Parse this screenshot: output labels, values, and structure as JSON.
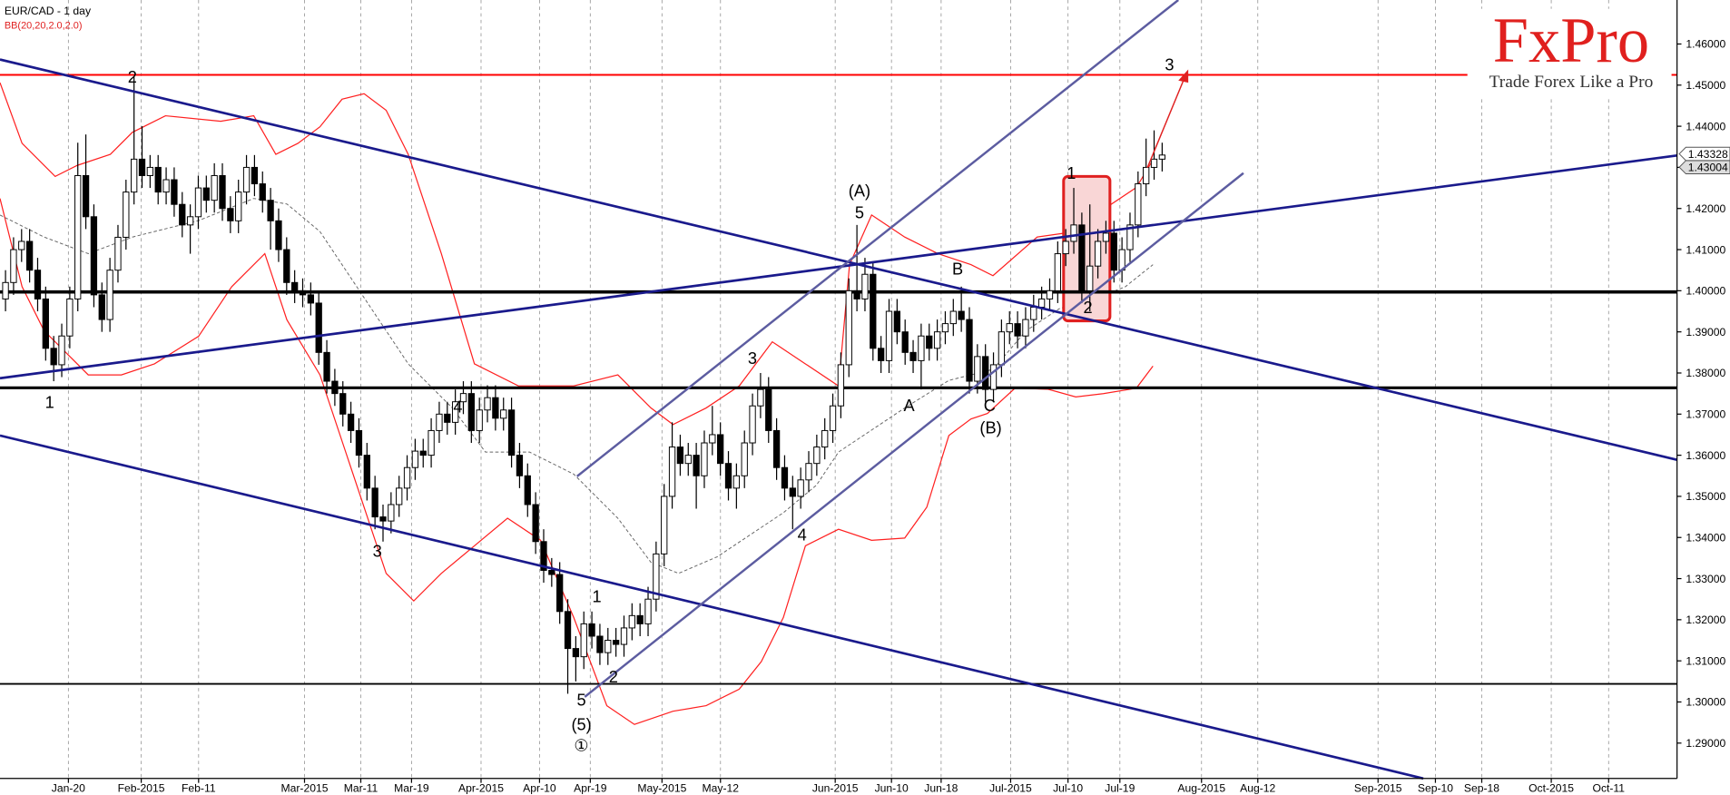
{
  "chart_data": {
    "type": "candlestick",
    "title": "EUR/CAD - 1 day",
    "indicator": "BB(20,20,2.0,2.0)",
    "ylim": [
      1.2814,
      1.4707
    ],
    "yticks": [
      {
        "value": 1.29,
        "label": "1.29000"
      },
      {
        "value": 1.3,
        "label": "1.30000"
      },
      {
        "value": 1.31,
        "label": "1.31000"
      },
      {
        "value": 1.32,
        "label": "1.32000"
      },
      {
        "value": 1.33,
        "label": "1.33000"
      },
      {
        "value": 1.34,
        "label": "1.34000"
      },
      {
        "value": 1.35,
        "label": "1.35000"
      },
      {
        "value": 1.36,
        "label": "1.36000"
      },
      {
        "value": 1.37,
        "label": "1.37000"
      },
      {
        "value": 1.38,
        "label": "1.38000"
      },
      {
        "value": 1.39,
        "label": "1.39000"
      },
      {
        "value": 1.4,
        "label": "1.40000"
      },
      {
        "value": 1.41,
        "label": "1.41000"
      },
      {
        "value": 1.42,
        "label": "1.42000"
      },
      {
        "value": 1.43,
        "label": "1.43000"
      },
      {
        "value": 1.44,
        "label": "1.44000"
      },
      {
        "value": 1.45,
        "label": "1.45000"
      },
      {
        "value": 1.46,
        "label": "1.46000"
      }
    ],
    "x_labels": [
      "Jan-20",
      "Feb-2015",
      "Feb-11",
      "Mar-2015",
      "Mar-11",
      "Mar-19",
      "Apr-2015",
      "Apr-10",
      "Apr-19",
      "May-2015",
      "May-12",
      "Jun-2015",
      "Jun-10",
      "Jun-18",
      "Jul-2015",
      "Jul-10",
      "Jul-19",
      "Aug-2015",
      "Aug-12",
      "Sep-2015",
      "Sep-10",
      "Sep-18",
      "Oct-2015",
      "Oct-11"
    ],
    "up_color": "#ffffff",
    "down_color": "#000000",
    "candles": [
      [
        1.398,
        1.405,
        1.395,
        1.402
      ],
      [
        1.402,
        1.413,
        1.399,
        1.41
      ],
      [
        1.41,
        1.415,
        1.407,
        1.412
      ],
      [
        1.412,
        1.415,
        1.402,
        1.405
      ],
      [
        1.405,
        1.408,
        1.395,
        1.398
      ],
      [
        1.398,
        1.401,
        1.383,
        1.386
      ],
      [
        1.386,
        1.389,
        1.378,
        1.382
      ],
      [
        1.382,
        1.392,
        1.379,
        1.389
      ],
      [
        1.389,
        1.401,
        1.386,
        1.398
      ],
      [
        1.398,
        1.436,
        1.395,
        1.428
      ],
      [
        1.428,
        1.438,
        1.415,
        1.418
      ],
      [
        1.418,
        1.421,
        1.396,
        1.399
      ],
      [
        1.399,
        1.402,
        1.39,
        1.393
      ],
      [
        1.393,
        1.408,
        1.39,
        1.405
      ],
      [
        1.405,
        1.416,
        1.402,
        1.413
      ],
      [
        1.413,
        1.427,
        1.41,
        1.424
      ],
      [
        1.424,
        1.452,
        1.421,
        1.432
      ],
      [
        1.432,
        1.44,
        1.425,
        1.428
      ],
      [
        1.428,
        1.433,
        1.425,
        1.43
      ],
      [
        1.43,
        1.433,
        1.421,
        1.424
      ],
      [
        1.424,
        1.43,
        1.421,
        1.427
      ],
      [
        1.427,
        1.43,
        1.418,
        1.421
      ],
      [
        1.421,
        1.424,
        1.413,
        1.416
      ],
      [
        1.416,
        1.421,
        1.409,
        1.418
      ],
      [
        1.418,
        1.428,
        1.415,
        1.425
      ],
      [
        1.425,
        1.428,
        1.419,
        1.422
      ],
      [
        1.422,
        1.431,
        1.419,
        1.428
      ],
      [
        1.428,
        1.431,
        1.417,
        1.42
      ],
      [
        1.42,
        1.423,
        1.414,
        1.417
      ],
      [
        1.417,
        1.427,
        1.414,
        1.424
      ],
      [
        1.424,
        1.433,
        1.421,
        1.43
      ],
      [
        1.43,
        1.433,
        1.423,
        1.426
      ],
      [
        1.426,
        1.429,
        1.419,
        1.422
      ],
      [
        1.422,
        1.425,
        1.41,
        1.417
      ],
      [
        1.417,
        1.42,
        1.407,
        1.41
      ],
      [
        1.41,
        1.413,
        1.399,
        1.402
      ],
      [
        1.402,
        1.405,
        1.397,
        1.4
      ],
      [
        1.4,
        1.403,
        1.396,
        1.399
      ],
      [
        1.399,
        1.402,
        1.394,
        1.397
      ],
      [
        1.397,
        1.4,
        1.382,
        1.385
      ],
      [
        1.385,
        1.388,
        1.375,
        1.378
      ],
      [
        1.378,
        1.381,
        1.372,
        1.375
      ],
      [
        1.375,
        1.378,
        1.367,
        1.37
      ],
      [
        1.37,
        1.373,
        1.363,
        1.366
      ],
      [
        1.366,
        1.369,
        1.357,
        1.36
      ],
      [
        1.36,
        1.363,
        1.349,
        1.352
      ],
      [
        1.352,
        1.355,
        1.342,
        1.345
      ],
      [
        1.345,
        1.348,
        1.339,
        1.344
      ],
      [
        1.344,
        1.351,
        1.341,
        1.348
      ],
      [
        1.348,
        1.355,
        1.345,
        1.352
      ],
      [
        1.352,
        1.36,
        1.349,
        1.357
      ],
      [
        1.357,
        1.364,
        1.354,
        1.361
      ],
      [
        1.361,
        1.364,
        1.357,
        1.36
      ],
      [
        1.36,
        1.369,
        1.357,
        1.366
      ],
      [
        1.366,
        1.373,
        1.363,
        1.37
      ],
      [
        1.37,
        1.373,
        1.365,
        1.368
      ],
      [
        1.368,
        1.376,
        1.365,
        1.373
      ],
      [
        1.373,
        1.378,
        1.37,
        1.375
      ],
      [
        1.375,
        1.378,
        1.363,
        1.366
      ],
      [
        1.366,
        1.374,
        1.363,
        1.371
      ],
      [
        1.371,
        1.377,
        1.368,
        1.374
      ],
      [
        1.374,
        1.377,
        1.366,
        1.369
      ],
      [
        1.369,
        1.374,
        1.366,
        1.371
      ],
      [
        1.371,
        1.374,
        1.357,
        1.36
      ],
      [
        1.36,
        1.363,
        1.352,
        1.355
      ],
      [
        1.355,
        1.358,
        1.345,
        1.348
      ],
      [
        1.348,
        1.351,
        1.336,
        1.339
      ],
      [
        1.339,
        1.342,
        1.329,
        1.332
      ],
      [
        1.332,
        1.335,
        1.328,
        1.331
      ],
      [
        1.331,
        1.334,
        1.319,
        1.322
      ],
      [
        1.322,
        1.325,
        1.302,
        1.313
      ],
      [
        1.313,
        1.316,
        1.305,
        1.311
      ],
      [
        1.311,
        1.322,
        1.308,
        1.319
      ],
      [
        1.319,
        1.322,
        1.313,
        1.316
      ],
      [
        1.316,
        1.319,
        1.309,
        1.312
      ],
      [
        1.312,
        1.318,
        1.309,
        1.315
      ],
      [
        1.315,
        1.318,
        1.311,
        1.314
      ],
      [
        1.314,
        1.321,
        1.311,
        1.318
      ],
      [
        1.318,
        1.324,
        1.315,
        1.321
      ],
      [
        1.321,
        1.324,
        1.316,
        1.319
      ],
      [
        1.319,
        1.328,
        1.316,
        1.325
      ],
      [
        1.325,
        1.339,
        1.322,
        1.336
      ],
      [
        1.336,
        1.353,
        1.333,
        1.35
      ],
      [
        1.35,
        1.368,
        1.347,
        1.362
      ],
      [
        1.362,
        1.365,
        1.355,
        1.358
      ],
      [
        1.358,
        1.363,
        1.355,
        1.36
      ],
      [
        1.36,
        1.363,
        1.347,
        1.355
      ],
      [
        1.355,
        1.366,
        1.352,
        1.363
      ],
      [
        1.363,
        1.372,
        1.36,
        1.365
      ],
      [
        1.365,
        1.368,
        1.355,
        1.358
      ],
      [
        1.358,
        1.361,
        1.349,
        1.352
      ],
      [
        1.352,
        1.358,
        1.347,
        1.355
      ],
      [
        1.355,
        1.366,
        1.352,
        1.363
      ],
      [
        1.363,
        1.375,
        1.36,
        1.372
      ],
      [
        1.372,
        1.38,
        1.369,
        1.376
      ],
      [
        1.376,
        1.379,
        1.363,
        1.366
      ],
      [
        1.366,
        1.369,
        1.354,
        1.357
      ],
      [
        1.357,
        1.36,
        1.349,
        1.352
      ],
      [
        1.352,
        1.355,
        1.342,
        1.35
      ],
      [
        1.35,
        1.357,
        1.347,
        1.354
      ],
      [
        1.354,
        1.361,
        1.351,
        1.358
      ],
      [
        1.358,
        1.365,
        1.355,
        1.362
      ],
      [
        1.362,
        1.369,
        1.359,
        1.366
      ],
      [
        1.366,
        1.375,
        1.363,
        1.372
      ],
      [
        1.372,
        1.385,
        1.369,
        1.382
      ],
      [
        1.382,
        1.403,
        1.379,
        1.4
      ],
      [
        1.4,
        1.416,
        1.395,
        1.398
      ],
      [
        1.398,
        1.408,
        1.395,
        1.404
      ],
      [
        1.404,
        1.407,
        1.383,
        1.386
      ],
      [
        1.386,
        1.389,
        1.38,
        1.383
      ],
      [
        1.383,
        1.398,
        1.38,
        1.395
      ],
      [
        1.395,
        1.398,
        1.387,
        1.39
      ],
      [
        1.39,
        1.393,
        1.382,
        1.385
      ],
      [
        1.385,
        1.388,
        1.38,
        1.383
      ],
      [
        1.383,
        1.392,
        1.376,
        1.389
      ],
      [
        1.389,
        1.392,
        1.383,
        1.386
      ],
      [
        1.386,
        1.393,
        1.383,
        1.39
      ],
      [
        1.39,
        1.395,
        1.387,
        1.392
      ],
      [
        1.392,
        1.398,
        1.389,
        1.395
      ],
      [
        1.395,
        1.401,
        1.39,
        1.393
      ],
      [
        1.393,
        1.396,
        1.375,
        1.378
      ],
      [
        1.378,
        1.387,
        1.375,
        1.384
      ],
      [
        1.384,
        1.387,
        1.373,
        1.376
      ],
      [
        1.376,
        1.385,
        1.373,
        1.382
      ],
      [
        1.382,
        1.393,
        1.379,
        1.39
      ],
      [
        1.39,
        1.395,
        1.387,
        1.392
      ],
      [
        1.392,
        1.395,
        1.386,
        1.389
      ],
      [
        1.389,
        1.396,
        1.386,
        1.393
      ],
      [
        1.393,
        1.399,
        1.39,
        1.396
      ],
      [
        1.396,
        1.401,
        1.393,
        1.398
      ],
      [
        1.398,
        1.403,
        1.395,
        1.4
      ],
      [
        1.4,
        1.412,
        1.397,
        1.409
      ],
      [
        1.409,
        1.415,
        1.406,
        1.412
      ],
      [
        1.412,
        1.425,
        1.409,
        1.416
      ],
      [
        1.416,
        1.419,
        1.397,
        1.4
      ],
      [
        1.4,
        1.421,
        1.395,
        1.406
      ],
      [
        1.406,
        1.415,
        1.403,
        1.412
      ],
      [
        1.412,
        1.417,
        1.409,
        1.414
      ],
      [
        1.414,
        1.417,
        1.402,
        1.405
      ],
      [
        1.405,
        1.413,
        1.402,
        1.41
      ],
      [
        1.41,
        1.419,
        1.407,
        1.416
      ],
      [
        1.416,
        1.429,
        1.413,
        1.426
      ],
      [
        1.426,
        1.437,
        1.423,
        1.43
      ],
      [
        1.43,
        1.439,
        1.427,
        1.432
      ],
      [
        1.432,
        1.436,
        1.429,
        1.433
      ]
    ],
    "hlines": [
      {
        "value": 1.4525,
        "color": "#ff0000"
      },
      {
        "value": 1.3997,
        "color": "#000000"
      },
      {
        "value": 1.3764,
        "color": "#000000"
      },
      {
        "value": 1.3044,
        "color": "#000000"
      }
    ],
    "price_markers": [
      1.43328,
      1.43004
    ],
    "annotations": [
      "2",
      "1",
      "3",
      "4",
      "5",
      "(5)",
      "①",
      "1",
      "2",
      "3",
      "4",
      "(A)",
      "5",
      "A",
      "B",
      "C",
      "(B)",
      "1",
      "2",
      "3"
    ]
  },
  "logo": {
    "brand": "FxPro",
    "tagline": "Trade Forex Like a Pro"
  }
}
